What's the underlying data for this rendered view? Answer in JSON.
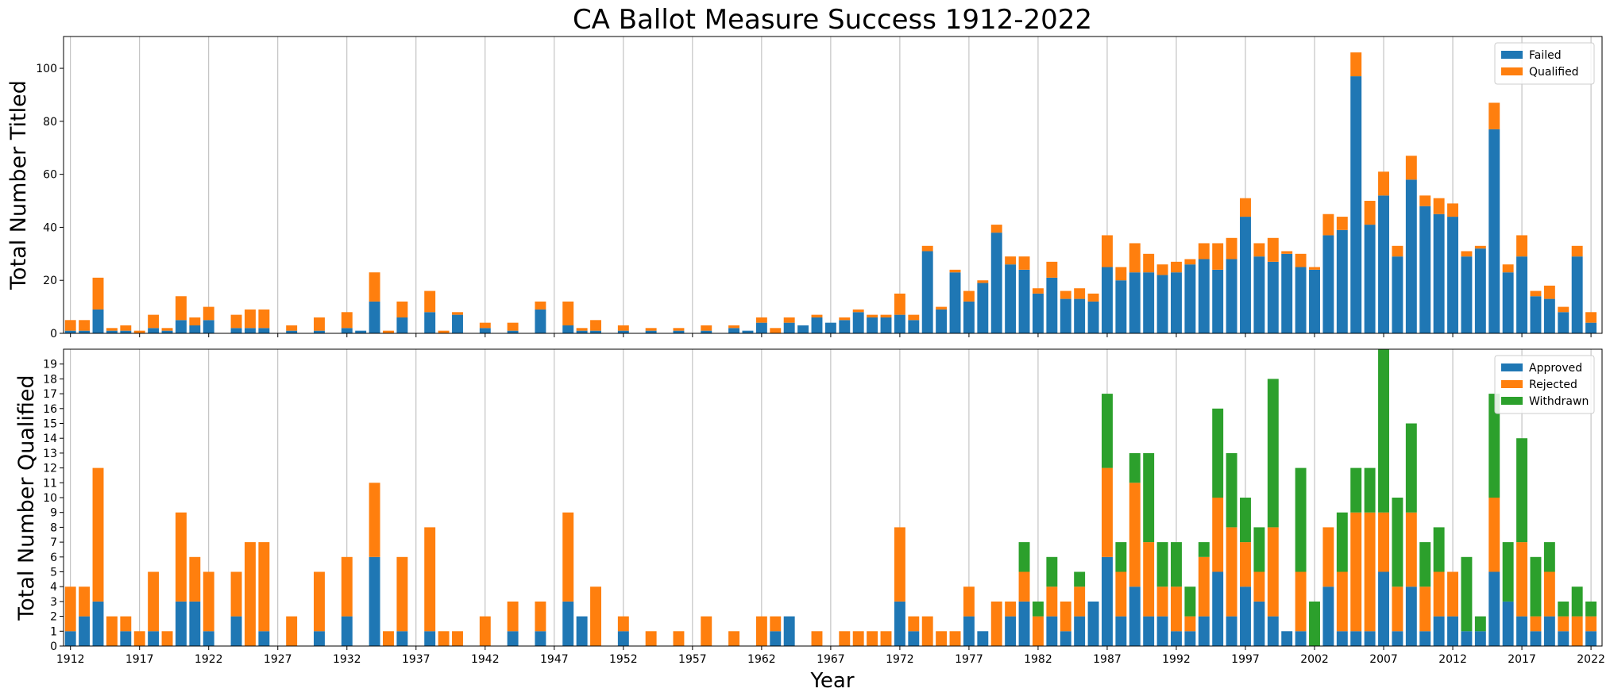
{
  "figure": {
    "title": "CA Ballot Measure Success 1912-2022",
    "xlabel": "Year"
  },
  "chart_data": [
    {
      "type": "bar",
      "stacked": true,
      "ylabel": "Total Number Titled",
      "ylim": [
        0,
        112
      ],
      "yticks": [
        0,
        20,
        40,
        60,
        80,
        100
      ],
      "xlim": [
        1911.5,
        2022.8
      ],
      "xticks": [
        1912,
        1917,
        1922,
        1927,
        1932,
        1937,
        1942,
        1947,
        1952,
        1957,
        1962,
        1967,
        1972,
        1977,
        1982,
        1987,
        1992,
        1997,
        2002,
        2007,
        2012,
        2017,
        2022
      ],
      "grid": "x",
      "legend_position": "top-right",
      "x": [
        1912,
        1913,
        1914,
        1915,
        1916,
        1917,
        1918,
        1919,
        1920,
        1921,
        1922,
        1924,
        1925,
        1926,
        1928,
        1930,
        1932,
        1933,
        1934,
        1935,
        1936,
        1938,
        1939,
        1940,
        1942,
        1944,
        1946,
        1948,
        1949,
        1950,
        1952,
        1954,
        1956,
        1958,
        1960,
        1961,
        1962,
        1963,
        1964,
        1965,
        1966,
        1967,
        1968,
        1969,
        1970,
        1971,
        1972,
        1973,
        1974,
        1975,
        1976,
        1977,
        1978,
        1979,
        1980,
        1981,
        1982,
        1983,
        1984,
        1985,
        1986,
        1987,
        1988,
        1989,
        1990,
        1991,
        1992,
        1993,
        1994,
        1995,
        1996,
        1997,
        1998,
        1999,
        2000,
        2001,
        2002,
        2003,
        2004,
        2005,
        2006,
        2007,
        2008,
        2009,
        2010,
        2011,
        2012,
        2013,
        2014,
        2015,
        2016,
        2017,
        2018,
        2019,
        2020,
        2021,
        2022
      ],
      "series": [
        {
          "name": "Failed",
          "color": "#1f77b4",
          "values": [
            1,
            1,
            9,
            1,
            1,
            0,
            2,
            1,
            5,
            3,
            5,
            2,
            2,
            2,
            1,
            1,
            2,
            1,
            12,
            0,
            6,
            8,
            0,
            7,
            2,
            1,
            9,
            3,
            1,
            1,
            1,
            1,
            1,
            1,
            2,
            1,
            4,
            0,
            4,
            3,
            6,
            4,
            5,
            8,
            6,
            6,
            7,
            5,
            31,
            9,
            23,
            12,
            19,
            38,
            26,
            24,
            15,
            21,
            13,
            13,
            12,
            25,
            20,
            23,
            23,
            22,
            23,
            26,
            28,
            24,
            28,
            44,
            29,
            27,
            30,
            25,
            24,
            37,
            39,
            97,
            41,
            52,
            29,
            58,
            48,
            45,
            44,
            29,
            32,
            77,
            23,
            29,
            14,
            13,
            8,
            29,
            4
          ]
        },
        {
          "name": "Qualified",
          "color": "#ff7f0e",
          "values": [
            4,
            4,
            12,
            1,
            2,
            1,
            5,
            1,
            9,
            3,
            5,
            5,
            7,
            7,
            2,
            5,
            6,
            0,
            11,
            1,
            6,
            8,
            1,
            1,
            2,
            3,
            3,
            9,
            1,
            4,
            2,
            1,
            1,
            2,
            1,
            0,
            2,
            2,
            2,
            0,
            1,
            0,
            1,
            1,
            1,
            1,
            8,
            2,
            2,
            1,
            1,
            4,
            1,
            3,
            3,
            5,
            2,
            6,
            3,
            4,
            3,
            12,
            5,
            11,
            7,
            4,
            4,
            2,
            6,
            10,
            8,
            7,
            5,
            9,
            1,
            5,
            1,
            8,
            5,
            9,
            9,
            9,
            4,
            9,
            4,
            6,
            5,
            2,
            1,
            10,
            3,
            8,
            2,
            5,
            2,
            4,
            4
          ]
        }
      ]
    },
    {
      "type": "bar",
      "stacked": true,
      "ylabel": "Total Number Qualified",
      "ylim": [
        0,
        20
      ],
      "yticks": [
        0,
        1,
        2,
        3,
        4,
        5,
        6,
        7,
        8,
        9,
        10,
        11,
        12,
        13,
        14,
        15,
        16,
        17,
        18,
        19
      ],
      "xlim": [
        1911.5,
        2022.8
      ],
      "xticks": [
        1912,
        1917,
        1922,
        1927,
        1932,
        1937,
        1942,
        1947,
        1952,
        1957,
        1962,
        1967,
        1972,
        1977,
        1982,
        1987,
        1992,
        1997,
        2002,
        2007,
        2012,
        2017,
        2022
      ],
      "grid": "x",
      "legend_position": "top-right",
      "x": [
        1912,
        1913,
        1914,
        1915,
        1916,
        1917,
        1918,
        1919,
        1920,
        1921,
        1922,
        1924,
        1925,
        1926,
        1928,
        1930,
        1932,
        1933,
        1934,
        1935,
        1936,
        1938,
        1939,
        1940,
        1942,
        1944,
        1946,
        1948,
        1949,
        1950,
        1952,
        1954,
        1956,
        1958,
        1960,
        1961,
        1962,
        1963,
        1964,
        1965,
        1966,
        1967,
        1968,
        1969,
        1970,
        1971,
        1972,
        1973,
        1974,
        1975,
        1976,
        1977,
        1978,
        1979,
        1980,
        1981,
        1982,
        1983,
        1984,
        1985,
        1986,
        1987,
        1988,
        1989,
        1990,
        1991,
        1992,
        1993,
        1994,
        1995,
        1996,
        1997,
        1998,
        1999,
        2000,
        2001,
        2002,
        2003,
        2004,
        2005,
        2006,
        2007,
        2008,
        2009,
        2010,
        2011,
        2012,
        2013,
        2014,
        2015,
        2016,
        2017,
        2018,
        2019,
        2020,
        2021,
        2022
      ],
      "series": [
        {
          "name": "Approved",
          "color": "#1f77b4",
          "values": [
            1,
            2,
            3,
            0,
            1,
            0,
            1,
            0,
            3,
            3,
            1,
            2,
            0,
            1,
            0,
            1,
            2,
            0,
            6,
            0,
            1,
            1,
            0,
            0,
            0,
            1,
            1,
            3,
            2,
            0,
            1,
            0,
            0,
            0,
            0,
            0,
            0,
            1,
            2,
            0,
            0,
            0,
            0,
            0,
            0,
            0,
            3,
            1,
            0,
            0,
            0,
            2,
            1,
            0,
            2,
            3,
            0,
            2,
            1,
            2,
            3,
            6,
            2,
            4,
            2,
            2,
            1,
            1,
            2,
            5,
            2,
            4,
            3,
            2,
            1,
            1,
            0,
            4,
            1,
            1,
            1,
            5,
            1,
            4,
            1,
            2,
            2,
            1,
            1,
            5,
            3,
            2,
            1,
            2,
            1,
            0,
            1
          ]
        },
        {
          "name": "Rejected",
          "color": "#ff7f0e",
          "values": [
            3,
            2,
            9,
            2,
            1,
            1,
            4,
            1,
            6,
            3,
            4,
            3,
            7,
            6,
            2,
            4,
            4,
            0,
            5,
            1,
            5,
            7,
            1,
            1,
            2,
            2,
            2,
            6,
            0,
            4,
            1,
            1,
            1,
            2,
            1,
            0,
            2,
            1,
            0,
            0,
            1,
            0,
            1,
            1,
            1,
            1,
            5,
            1,
            2,
            1,
            1,
            2,
            0,
            3,
            1,
            2,
            2,
            2,
            2,
            2,
            0,
            6,
            3,
            7,
            5,
            2,
            3,
            1,
            4,
            5,
            6,
            3,
            2,
            6,
            0,
            4,
            0,
            4,
            4,
            8,
            8,
            4,
            3,
            5,
            3,
            3,
            3,
            0,
            0,
            5,
            0,
            5,
            1,
            3,
            1,
            2,
            1
          ]
        },
        {
          "name": "Withdrawn",
          "color": "#2ca02c",
          "values": [
            0,
            0,
            0,
            0,
            0,
            0,
            0,
            0,
            0,
            0,
            0,
            0,
            0,
            0,
            0,
            0,
            0,
            0,
            0,
            0,
            0,
            0,
            0,
            0,
            0,
            0,
            0,
            0,
            0,
            0,
            0,
            0,
            0,
            0,
            0,
            0,
            0,
            0,
            0,
            0,
            0,
            0,
            0,
            0,
            0,
            0,
            0,
            0,
            0,
            0,
            0,
            0,
            0,
            0,
            0,
            2,
            1,
            2,
            0,
            1,
            0,
            5,
            2,
            2,
            6,
            3,
            3,
            2,
            1,
            6,
            5,
            3,
            3,
            10,
            0,
            7,
            3,
            0,
            4,
            3,
            3,
            11,
            6,
            6,
            3,
            3,
            0,
            5,
            1,
            7,
            4,
            7,
            4,
            2,
            1,
            2,
            1
          ]
        }
      ]
    }
  ]
}
